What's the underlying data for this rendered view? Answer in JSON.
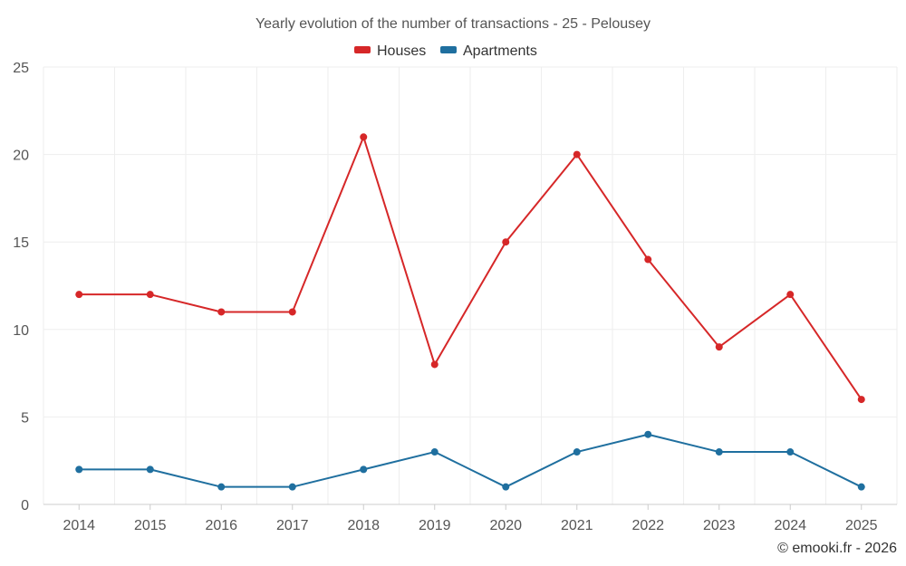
{
  "chart_data": {
    "type": "line",
    "title": "Yearly evolution of the number of transactions - 25 - Pelousey",
    "categories": [
      "2014",
      "2015",
      "2016",
      "2017",
      "2018",
      "2019",
      "2020",
      "2021",
      "2022",
      "2023",
      "2024",
      "2025"
    ],
    "series": [
      {
        "name": "Houses",
        "color": "#d62728",
        "values": [
          12,
          12,
          11,
          11,
          21,
          8,
          15,
          20,
          14,
          9,
          12,
          6
        ]
      },
      {
        "name": "Apartments",
        "color": "#1f6f9f",
        "values": [
          2,
          2,
          1,
          1,
          2,
          3,
          1,
          3,
          4,
          3,
          3,
          1
        ]
      }
    ],
    "y_ticks": [
      "0",
      "5",
      "10",
      "15",
      "20",
      "25"
    ],
    "ylim": [
      0,
      25
    ],
    "xlabel": "",
    "ylabel": "",
    "grid": true,
    "legend_position": "top-center"
  },
  "credit": "© emooki.fr - 2026"
}
